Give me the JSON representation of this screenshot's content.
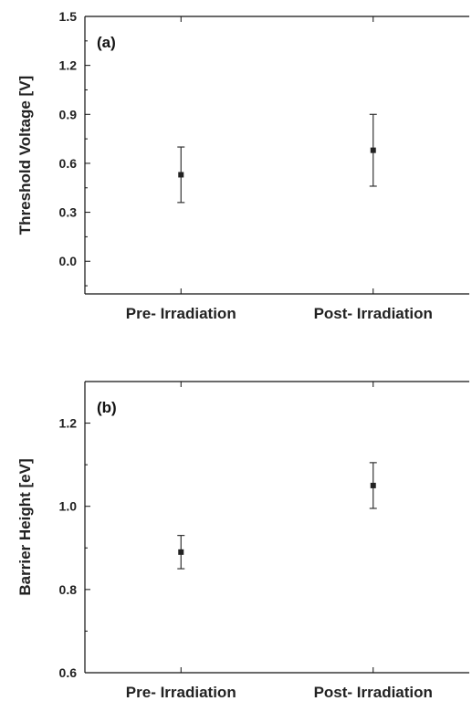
{
  "chart_data": [
    {
      "type": "scatter",
      "panel_label": "(a)",
      "ylabel": "Threshold Voltage [V]",
      "xlabel": "",
      "categories": [
        "Pre- Irradiation",
        "Post- Irradiation"
      ],
      "values": [
        0.53,
        0.68
      ],
      "error_low": [
        0.36,
        0.46
      ],
      "error_high": [
        0.7,
        0.9
      ],
      "ylim": [
        -0.2,
        1.5
      ],
      "yticks": [
        0.0,
        0.3,
        0.6,
        0.9,
        1.2,
        1.5
      ],
      "ytick_labels": [
        "0.0",
        "0.3",
        "0.6",
        "0.9",
        "1.2",
        "1.5"
      ],
      "grid": false,
      "marker_color": "#222222"
    },
    {
      "type": "scatter",
      "panel_label": "(b)",
      "ylabel": "Barrier Height [eV]",
      "xlabel": "",
      "categories": [
        "Pre- Irradiation",
        "Post- Irradiation"
      ],
      "values": [
        0.89,
        1.05
      ],
      "error_low": [
        0.85,
        0.995
      ],
      "error_high": [
        0.93,
        1.105
      ],
      "ylim": [
        0.6,
        1.3
      ],
      "yticks": [
        0.6,
        0.8,
        1.0,
        1.2
      ],
      "ytick_labels": [
        "0.6",
        "0.8",
        "1.0",
        "1.2"
      ],
      "grid": false,
      "marker_color": "#222222"
    }
  ]
}
